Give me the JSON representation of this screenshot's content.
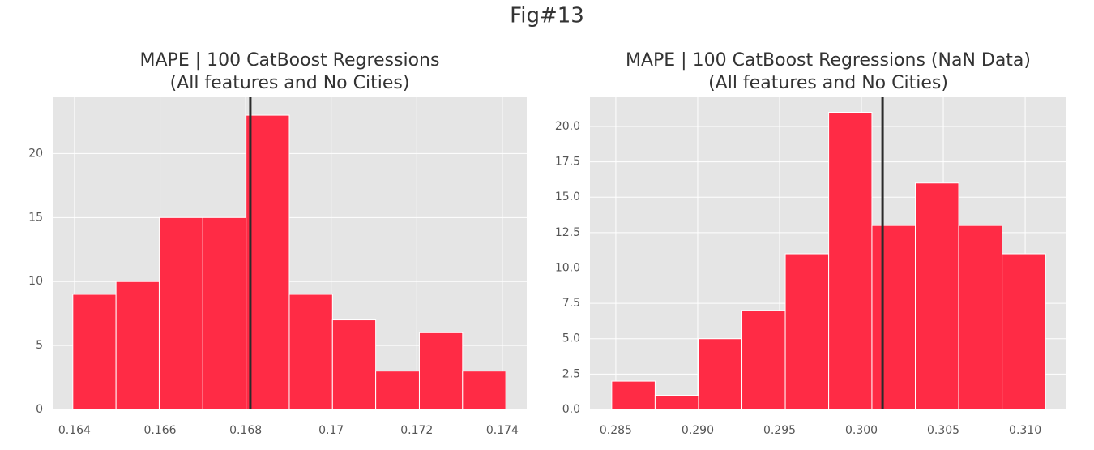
{
  "title": "Fig#13",
  "chart_data": [
    {
      "type": "histogram",
      "title": [
        "MAPE | 100 CatBoost Regressions",
        "(All features and No Cities)"
      ],
      "bins": [
        0.16396,
        0.16497,
        0.16598,
        0.167,
        0.16801,
        0.16902,
        0.17003,
        0.17104,
        0.17206,
        0.17307,
        0.17408
      ],
      "values": [
        9,
        10,
        15,
        15,
        23,
        9,
        7,
        3,
        6,
        3
      ],
      "color": "#ff2b45",
      "vline": 0.16811,
      "vline_color": "#2b2b2b",
      "xlim": [
        0.16349,
        0.17457
      ],
      "xticks": [
        0.164,
        0.166,
        0.168,
        0.17,
        0.172,
        0.174
      ],
      "ylim": [
        0,
        24.4
      ],
      "yticks": [
        0,
        5,
        10,
        15,
        20
      ],
      "grid": true
    },
    {
      "type": "histogram",
      "title": [
        "MAPE | 100 CatBoost Regressions (NaN Data)",
        "(All features and No Cities)"
      ],
      "bins": [
        0.28475,
        0.2874,
        0.29005,
        0.2927,
        0.29535,
        0.298,
        0.30064,
        0.30329,
        0.30594,
        0.30859,
        0.31124
      ],
      "values": [
        2,
        1,
        5,
        7,
        11,
        21,
        13,
        16,
        13,
        11
      ],
      "color": "#ff2b45",
      "vline": 0.30129,
      "vline_color": "#2b2b2b",
      "xlim": [
        0.28342,
        0.31252
      ],
      "xticks": [
        0.285,
        {
          "value": 0.29,
          "label": "0.290"
        },
        0.295,
        {
          "value": 0.3,
          "label": "0.300"
        },
        0.305,
        {
          "value": 0.31,
          "label": "0.310"
        }
      ],
      "ylim": [
        0,
        22.06
      ],
      "yticks": [
        {
          "value": 0,
          "label": "0.0"
        },
        {
          "value": 2.5,
          "label": "2.5"
        },
        {
          "value": 5,
          "label": "5.0"
        },
        {
          "value": 7.5,
          "label": "7.5"
        },
        {
          "value": 10,
          "label": "10.0"
        },
        {
          "value": 12.5,
          "label": "12.5"
        },
        {
          "value": 15,
          "label": "15.0"
        },
        {
          "value": 17.5,
          "label": "17.5"
        },
        {
          "value": 20,
          "label": "20.0"
        }
      ],
      "grid": true
    }
  ]
}
